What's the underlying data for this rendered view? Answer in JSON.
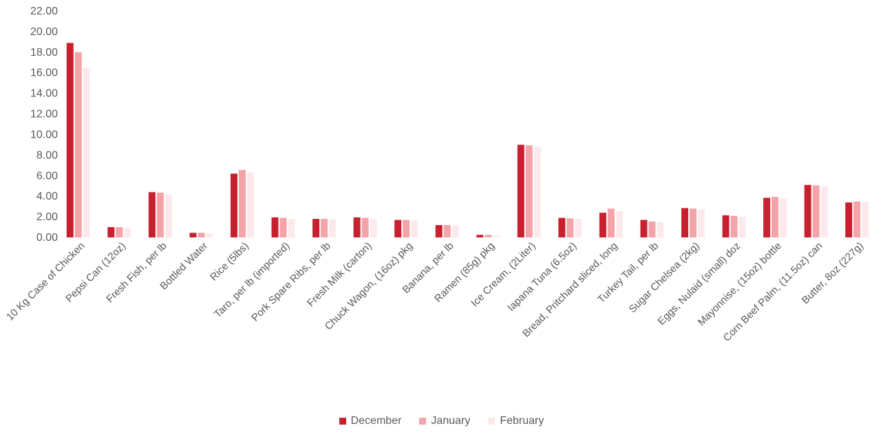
{
  "chart_data": {
    "type": "bar",
    "title": "",
    "xlabel": "",
    "ylabel": "",
    "ylim": [
      0,
      22
    ],
    "yticks": [
      "0.00",
      "2.00",
      "4.00",
      "6.00",
      "8.00",
      "10.00",
      "12.00",
      "14.00",
      "16.00",
      "18.00",
      "20.00",
      "22.00"
    ],
    "grid": false,
    "legend_position": "bottom",
    "categories": [
      "10 Kg Case of Chicken",
      "Pepsi Can (12oz)",
      "Fresh Fish, per lb",
      "Bottled Water",
      "Rice (5lbs)",
      "Taro, per lb (imported)",
      "Pork Spare Ribs, per lb",
      "Fresh Milk (carton)",
      "Chuck Wagon, (16oz) pkg",
      "Banana, per lb",
      "Ramen (85g) pkg",
      "Ice Cream, (2Liter)",
      "Iapana Tuna (6.5oz)",
      "Bread, Pritchard sliced, long",
      "Turkey Tail, per lb",
      "Sugar Chelsea (2kg)",
      "Eggs, Nulaid (small) doz",
      "Mayonnise, (15oz) bottle",
      "Corn Beef Palm, (11.5oz) can",
      "Butter, 8oz (227g)"
    ],
    "series": [
      {
        "name": "December",
        "color": "#c8202f",
        "values": [
          18.9,
          1.0,
          4.4,
          0.45,
          6.2,
          1.95,
          1.8,
          1.95,
          1.7,
          1.2,
          0.25,
          9.0,
          1.9,
          2.4,
          1.7,
          2.85,
          2.15,
          3.85,
          5.1,
          3.4
        ]
      },
      {
        "name": "January",
        "color": "#f4a3a8",
        "values": [
          18.0,
          1.0,
          4.35,
          0.45,
          6.55,
          1.9,
          1.8,
          1.9,
          1.7,
          1.2,
          0.25,
          8.95,
          1.85,
          2.8,
          1.55,
          2.8,
          2.1,
          3.95,
          5.05,
          3.5
        ]
      },
      {
        "name": "February",
        "color": "#fde9eb",
        "values": [
          16.5,
          0.9,
          4.15,
          0.4,
          6.35,
          1.8,
          1.75,
          1.8,
          1.65,
          1.15,
          0.2,
          8.8,
          1.8,
          2.55,
          1.5,
          2.7,
          2.0,
          3.8,
          5.0,
          3.45
        ]
      }
    ]
  }
}
